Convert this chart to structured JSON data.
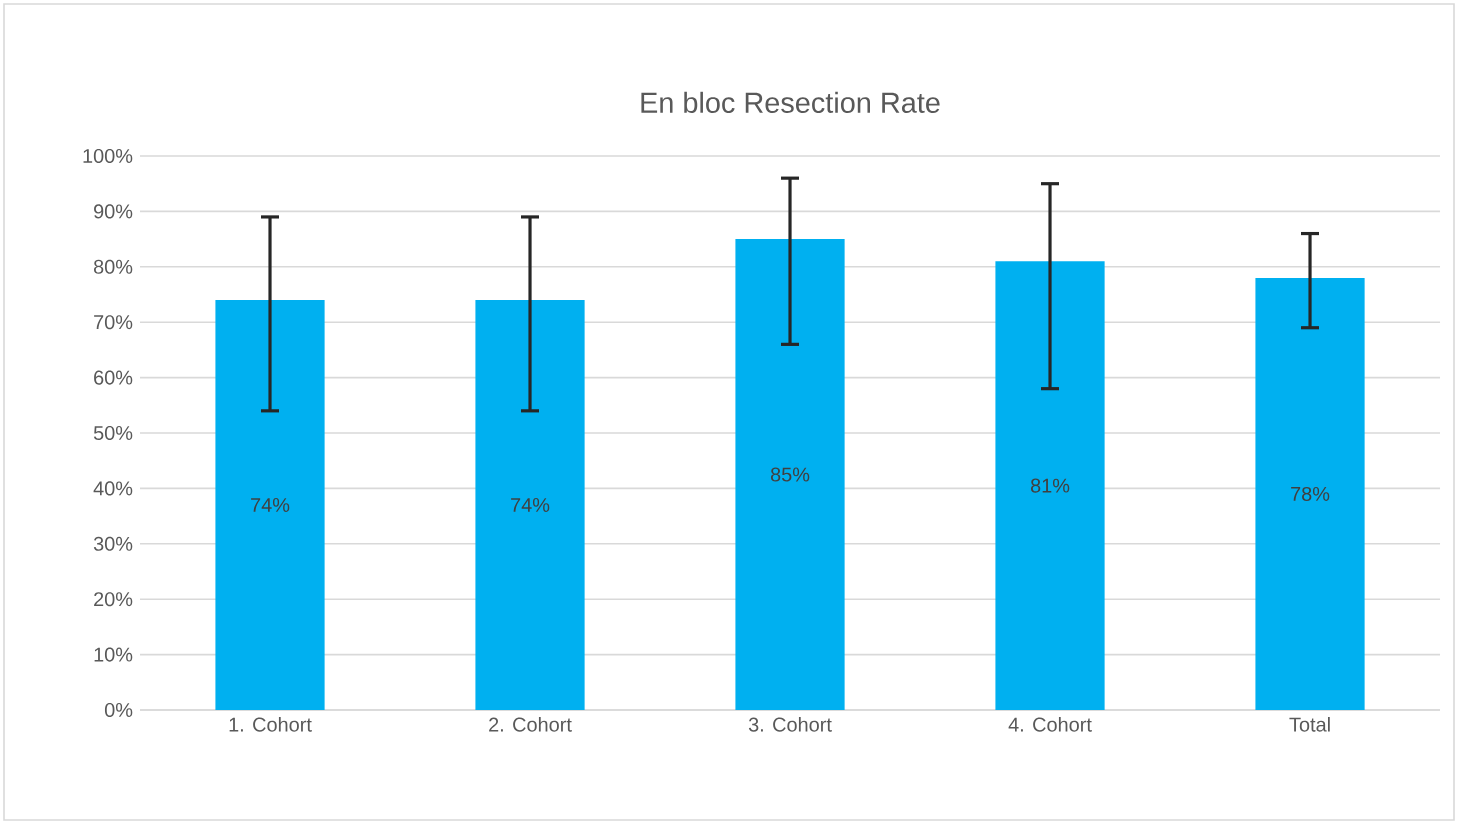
{
  "chart_data": {
    "type": "bar",
    "title": "En bloc Resection Rate",
    "categories": [
      "1. Cohort",
      "2. Cohort",
      "3. Cohort",
      "4. Cohort",
      "Total"
    ],
    "values": [
      74,
      74,
      85,
      81,
      78
    ],
    "value_labels": [
      "74%",
      "74%",
      "85%",
      "81%",
      "78%"
    ],
    "errors": [
      [
        54,
        89
      ],
      [
        54,
        89
      ],
      [
        66,
        96
      ],
      [
        58,
        95
      ],
      [
        69,
        86
      ]
    ],
    "color": "#00b0f0",
    "ylim": [
      0,
      100
    ],
    "yticks": [
      {
        "value": 0,
        "label": "0%"
      },
      {
        "value": 10,
        "label": "10%"
      },
      {
        "value": 20,
        "label": "20%"
      },
      {
        "value": 30,
        "label": "30%"
      },
      {
        "value": 40,
        "label": "40%"
      },
      {
        "value": 50,
        "label": "50%"
      },
      {
        "value": 60,
        "label": "60%"
      },
      {
        "value": 70,
        "label": "70%"
      },
      {
        "value": 80,
        "label": "80%"
      },
      {
        "value": 90,
        "label": "90%"
      },
      {
        "value": 100,
        "label": "100%"
      }
    ],
    "grid": "y"
  }
}
